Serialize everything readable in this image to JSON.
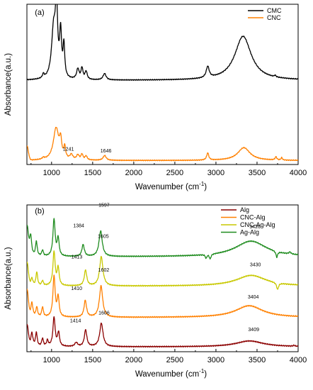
{
  "chart_data": [
    {
      "type": "line",
      "panel_label": "(a)",
      "xlabel": "Wavenumber",
      "xlabel_unit": "(cm",
      "xlabel_sup": "-1",
      "xlabel_close": ")",
      "ylabel": "Absorbance(a.u.)",
      "xlim": [
        700,
        4000
      ],
      "x_ticks": [
        1000,
        1500,
        2000,
        2500,
        3000,
        3500,
        4000
      ],
      "y_ticks_shown": false,
      "legend_position": "top-right",
      "series": [
        {
          "name": "CMC",
          "color": "#000000",
          "offset": 1.0,
          "baseline": 0.0,
          "peaks": [
            {
              "x": 900,
              "h": 0.05,
              "w": 12
            },
            {
              "x": 1025,
              "h": 0.62,
              "w": 30
            },
            {
              "x": 1060,
              "h": 0.82,
              "w": 16
            },
            {
              "x": 1110,
              "h": 0.55,
              "w": 14
            },
            {
              "x": 1150,
              "h": 0.4,
              "w": 12
            },
            {
              "x": 1320,
              "h": 0.13,
              "w": 18
            },
            {
              "x": 1370,
              "h": 0.14,
              "w": 14
            },
            {
              "x": 1420,
              "h": 0.1,
              "w": 16
            },
            {
              "x": 1645,
              "h": 0.08,
              "w": 22
            },
            {
              "x": 2900,
              "h": 0.14,
              "w": 22
            },
            {
              "x": 3330,
              "h": 0.55,
              "w": 120
            },
            {
              "x": 3720,
              "h": 0.02,
              "w": 10
            }
          ]
        },
        {
          "name": "CNC",
          "color": "#ff8000",
          "offset": 0.0,
          "baseline": 0.0,
          "edge_start": 0.18,
          "peaks": [
            {
              "x": 900,
              "h": 0.02,
              "w": 15
            },
            {
              "x": 1055,
              "h": 0.4,
              "w": 40
            },
            {
              "x": 1110,
              "h": 0.2,
              "w": 15
            },
            {
              "x": 1160,
              "h": 0.14,
              "w": 12
            },
            {
              "x": 1241,
              "h": 0.06,
              "w": 20
            },
            {
              "x": 1320,
              "h": 0.06,
              "w": 18
            },
            {
              "x": 1370,
              "h": 0.07,
              "w": 14
            },
            {
              "x": 1420,
              "h": 0.05,
              "w": 15
            },
            {
              "x": 1646,
              "h": 0.06,
              "w": 22
            },
            {
              "x": 2900,
              "h": 0.09,
              "w": 15
            },
            {
              "x": 3340,
              "h": 0.16,
              "w": 90
            },
            {
              "x": 3730,
              "h": 0.04,
              "w": 12
            },
            {
              "x": 3800,
              "h": 0.03,
              "w": 10
            }
          ]
        }
      ],
      "annotations": [
        {
          "text": "1241",
          "x": 1241,
          "series": "CNC"
        },
        {
          "text": "1646",
          "x": 1646,
          "series": "CNC"
        }
      ]
    },
    {
      "type": "line",
      "panel_label": "(b)",
      "xlabel": "Wavenumber",
      "xlabel_unit": "(cm",
      "xlabel_sup": "-1",
      "xlabel_close": ")",
      "ylabel": "Absorbance(a.u.)",
      "xlim": [
        700,
        4000
      ],
      "x_ticks": [
        1000,
        1500,
        2000,
        2500,
        3000,
        3500,
        4000
      ],
      "y_ticks_shown": false,
      "legend_position": "top-right",
      "series": [
        {
          "name": "Alg",
          "color": "#8b0000",
          "offset": 0.0,
          "edge_start": 0.22,
          "peaks": [
            {
              "x": 760,
              "h": 0.14,
              "w": 15
            },
            {
              "x": 815,
              "h": 0.14,
              "w": 12
            },
            {
              "x": 890,
              "h": 0.08,
              "w": 12
            },
            {
              "x": 950,
              "h": 0.06,
              "w": 12
            },
            {
              "x": 1030,
              "h": 0.3,
              "w": 16
            },
            {
              "x": 1085,
              "h": 0.14,
              "w": 14
            },
            {
              "x": 1300,
              "h": 0.04,
              "w": 20
            },
            {
              "x": 1414,
              "h": 0.17,
              "w": 18
            },
            {
              "x": 1606,
              "h": 0.24,
              "w": 24
            },
            {
              "x": 3409,
              "h": 0.06,
              "w": 200
            },
            {
              "x": 3950,
              "h": 0.01,
              "w": 10
            }
          ]
        },
        {
          "name": "CNC-Alg",
          "color": "#ff8000",
          "offset": 0.3,
          "edge_start": 0.28,
          "peaks": [
            {
              "x": 760,
              "h": 0.15,
              "w": 15
            },
            {
              "x": 820,
              "h": 0.1,
              "w": 12
            },
            {
              "x": 890,
              "h": 0.1,
              "w": 12
            },
            {
              "x": 1030,
              "h": 0.42,
              "w": 16
            },
            {
              "x": 1080,
              "h": 0.2,
              "w": 14
            },
            {
              "x": 1410,
              "h": 0.17,
              "w": 18
            },
            {
              "x": 1602,
              "h": 0.32,
              "w": 24
            },
            {
              "x": 3404,
              "h": 0.12,
              "w": 200
            }
          ]
        },
        {
          "name": "CNC-Ag-Alg",
          "color": "#c8c800",
          "offset": 0.62,
          "edge_start": 0.24,
          "peaks": [
            {
              "x": 760,
              "h": 0.08,
              "w": 15
            },
            {
              "x": 820,
              "h": 0.14,
              "w": 12
            },
            {
              "x": 890,
              "h": 0.05,
              "w": 12
            },
            {
              "x": 1030,
              "h": 0.35,
              "w": 16
            },
            {
              "x": 1080,
              "h": 0.18,
              "w": 14
            },
            {
              "x": 1413,
              "h": 0.16,
              "w": 18
            },
            {
              "x": 1605,
              "h": 0.3,
              "w": 24
            },
            {
              "x": 3430,
              "h": 0.11,
              "w": 220
            },
            {
              "x": 3750,
              "h": -0.07,
              "w": 14
            }
          ]
        },
        {
          "name": "Ag-Alg",
          "color": "#1f8c1f",
          "offset": 0.92,
          "edge_start": 0.3,
          "peaks": [
            {
              "x": 745,
              "h": 0.22,
              "w": 15
            },
            {
              "x": 815,
              "h": 0.15,
              "w": 12
            },
            {
              "x": 890,
              "h": 0.06,
              "w": 12
            },
            {
              "x": 1030,
              "h": 0.38,
              "w": 16
            },
            {
              "x": 1080,
              "h": 0.18,
              "w": 14
            },
            {
              "x": 1384,
              "h": 0.12,
              "w": 18
            },
            {
              "x": 1597,
              "h": 0.26,
              "w": 24
            },
            {
              "x": 2880,
              "h": -0.04,
              "w": 10
            },
            {
              "x": 2930,
              "h": -0.05,
              "w": 12
            },
            {
              "x": 3426,
              "h": 0.16,
              "w": 230
            },
            {
              "x": 3740,
              "h": -0.06,
              "w": 12
            },
            {
              "x": 3900,
              "h": 0.02,
              "w": 15
            }
          ]
        }
      ],
      "annotations": [
        {
          "text": "1597",
          "x": 1597,
          "series": "Ag-Alg"
        },
        {
          "text": "1384",
          "x": 1384,
          "series": "Ag-Alg"
        },
        {
          "text": "3426",
          "x": 3426,
          "series": "Ag-Alg"
        },
        {
          "text": "1605",
          "x": 1605,
          "series": "CNC-Ag-Alg"
        },
        {
          "text": "1413",
          "x": 1413,
          "series": "CNC-Ag-Alg"
        },
        {
          "text": "3430",
          "x": 3430,
          "series": "CNC-Ag-Alg"
        },
        {
          "text": "1602",
          "x": 1602,
          "series": "CNC-Alg"
        },
        {
          "text": "1410",
          "x": 1410,
          "series": "CNC-Alg"
        },
        {
          "text": "3404",
          "x": 3404,
          "series": "CNC-Alg"
        },
        {
          "text": "1606",
          "x": 1606,
          "series": "Alg"
        },
        {
          "text": "1414",
          "x": 1414,
          "series": "Alg"
        },
        {
          "text": "3409",
          "x": 3409,
          "series": "Alg"
        }
      ]
    }
  ]
}
